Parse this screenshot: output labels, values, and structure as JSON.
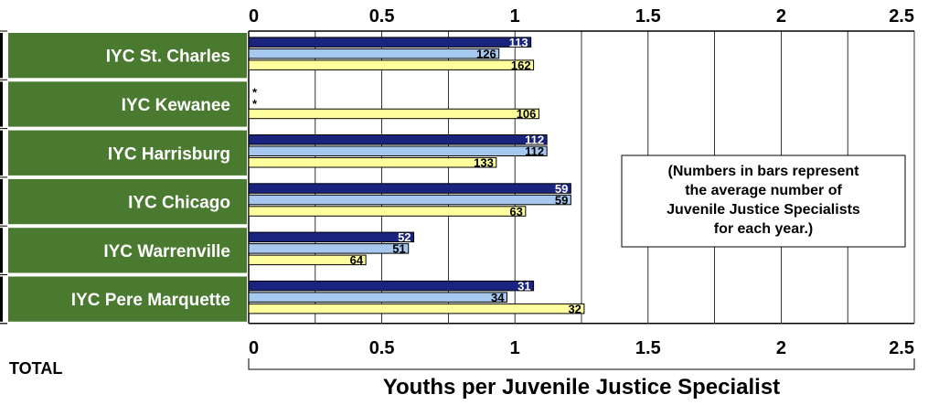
{
  "chart_data": {
    "type": "bar",
    "orientation": "horizontal",
    "categories": [
      "IYC St. Charles",
      "IYC Kewanee",
      "IYC Harrisburg",
      "IYC Chicago",
      "IYC Warrenville",
      "IYC Pere Marquette"
    ],
    "series": [
      {
        "values": [
          1.06,
          null,
          1.12,
          1.21,
          0.62,
          1.07
        ],
        "labels": [
          "113",
          "*",
          "112",
          "59",
          "52",
          "31"
        ],
        "color": "#1a237e"
      },
      {
        "values": [
          0.94,
          null,
          1.12,
          1.21,
          0.6,
          0.97
        ],
        "labels": [
          "126",
          "*",
          "112",
          "59",
          "51",
          "34"
        ],
        "color": "#a6c8ee"
      },
      {
        "values": [
          1.07,
          1.09,
          0.93,
          1.04,
          0.44,
          1.26
        ],
        "labels": [
          "162",
          "106",
          "133",
          "63",
          "64",
          "32"
        ],
        "color": "#ffff9e"
      }
    ],
    "xlim": [
      0,
      2.5
    ],
    "xticks": [
      "0",
      "0.5",
      "1",
      "1.5",
      "2",
      "2.5"
    ],
    "xlabel": "Youths per Juvenile Justice Specialist",
    "total_label": "TOTAL",
    "note": [
      "(Numbers in bars represent",
      "the average number of",
      "Juvenile Justice Specialists",
      "for each year.)"
    ],
    "grid": true,
    "colors": {
      "label_bg": "#4a7a30",
      "label_text": "#ffffff",
      "grid": "#000000"
    }
  }
}
